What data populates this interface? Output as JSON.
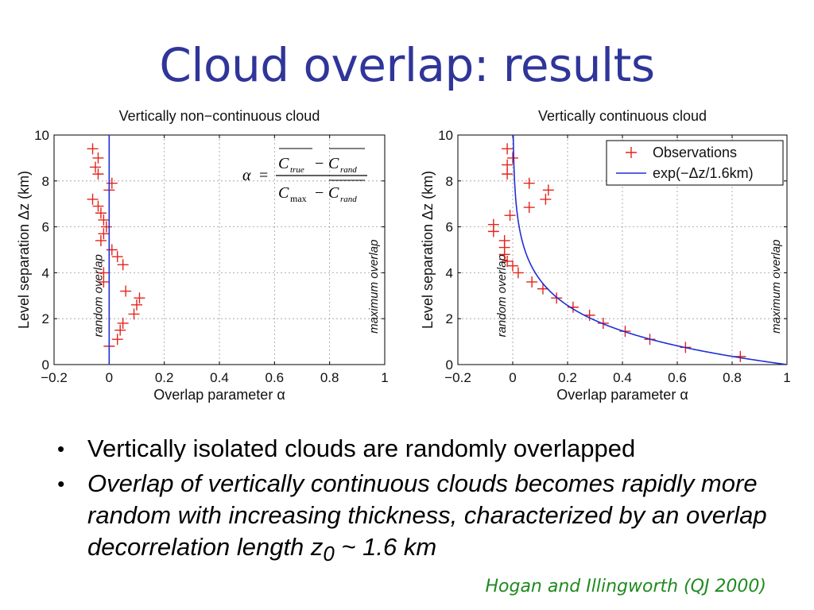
{
  "slide": {
    "title": "Cloud overlap: results",
    "bullets": [
      {
        "text": "Vertically isolated clouds are randomly overlapped",
        "italic": false
      },
      {
        "text_before": "Overlap of vertically continuous clouds becomes rapidly more random with increasing thickness, characterized by an overlap decorrelation length z",
        "subscript": "0",
        "text_after": " ~ 1.6 km",
        "italic": true
      }
    ],
    "citation": "Hogan and Illingworth (QJ 2000)"
  },
  "formula": {
    "alpha": "α",
    "equals": "=",
    "minus": "−",
    "C": "C",
    "true_sub": "true",
    "rand_sub": "rand",
    "max_sub": "max"
  },
  "chart_data": [
    {
      "type": "scatter",
      "title": "Vertically non−continuous cloud",
      "xlabel": "Overlap parameter α",
      "ylabel": "Level separation Δz (km)",
      "xlim": [
        -0.2,
        1
      ],
      "ylim": [
        0,
        10
      ],
      "xticks": [
        "−0.2",
        "0",
        "0.2",
        "0.4",
        "0.6",
        "0.8",
        "1"
      ],
      "yticks": [
        "0",
        "2",
        "4",
        "6",
        "8",
        "10"
      ],
      "grid": true,
      "annotations": [
        "random overlap",
        "maximum overlap"
      ],
      "series": [
        {
          "marker": "+",
          "color": "#e3241b",
          "points": [
            [
              -0.06,
              9.4
            ],
            [
              -0.05,
              8.6
            ],
            [
              -0.04,
              9.0
            ],
            [
              -0.04,
              8.3
            ],
            [
              0.01,
              7.9
            ],
            [
              0.0,
              7.6
            ],
            [
              -0.06,
              7.2
            ],
            [
              -0.04,
              6.9
            ],
            [
              -0.03,
              6.6
            ],
            [
              -0.02,
              6.3
            ],
            [
              -0.01,
              6.0
            ],
            [
              -0.02,
              5.7
            ],
            [
              -0.03,
              5.4
            ],
            [
              0.01,
              5.0
            ],
            [
              0.03,
              4.7
            ],
            [
              0.05,
              4.35
            ],
            [
              -0.02,
              4.0
            ],
            [
              -0.02,
              3.6
            ],
            [
              0.06,
              3.2
            ],
            [
              0.11,
              2.9
            ],
            [
              0.1,
              2.6
            ],
            [
              0.09,
              2.2
            ],
            [
              0.05,
              1.8
            ],
            [
              0.04,
              1.5
            ],
            [
              0.03,
              1.1
            ],
            [
              0.0,
              0.8
            ]
          ]
        },
        {
          "type": "line",
          "color": "#1f2fd6",
          "x": [
            0,
            0
          ],
          "y": [
            0,
            10
          ]
        }
      ]
    },
    {
      "type": "scatter",
      "title": "Vertically continuous cloud",
      "xlabel": "Overlap parameter α",
      "ylabel": "Level separation Δz (km)",
      "xlim": [
        -0.2,
        1
      ],
      "ylim": [
        0,
        10
      ],
      "xticks": [
        "−0.2",
        "0",
        "0.2",
        "0.4",
        "0.6",
        "0.8",
        "1"
      ],
      "yticks": [
        "0",
        "2",
        "4",
        "6",
        "8",
        "10"
      ],
      "grid": true,
      "legend": "top-right",
      "annotations": [
        "random overlap",
        "maximum overlap"
      ],
      "series": [
        {
          "name": "Observations",
          "marker": "+",
          "color": "#e3241b",
          "points": [
            [
              -0.02,
              9.4
            ],
            [
              0.0,
              9.0
            ],
            [
              -0.02,
              8.7
            ],
            [
              -0.02,
              8.3
            ],
            [
              0.06,
              7.9
            ],
            [
              0.13,
              7.6
            ],
            [
              0.12,
              7.2
            ],
            [
              0.06,
              6.85
            ],
            [
              -0.01,
              6.5
            ],
            [
              -0.07,
              6.1
            ],
            [
              -0.07,
              5.8
            ],
            [
              -0.03,
              5.4
            ],
            [
              -0.03,
              5.1
            ],
            [
              -0.03,
              4.8
            ],
            [
              -0.02,
              4.5
            ],
            [
              0.0,
              4.3
            ],
            [
              0.02,
              4.0
            ],
            [
              0.07,
              3.6
            ],
            [
              0.11,
              3.3
            ],
            [
              0.16,
              2.9
            ],
            [
              0.22,
              2.5
            ],
            [
              0.28,
              2.15
            ],
            [
              0.33,
              1.8
            ],
            [
              0.41,
              1.45
            ],
            [
              0.5,
              1.1
            ],
            [
              0.63,
              0.75
            ],
            [
              0.83,
              0.35
            ]
          ]
        },
        {
          "name": "exp(−Δz/1.6km)",
          "type": "line",
          "color": "#1f2fd6",
          "function": "exp(-dz/1.6)"
        }
      ]
    }
  ]
}
